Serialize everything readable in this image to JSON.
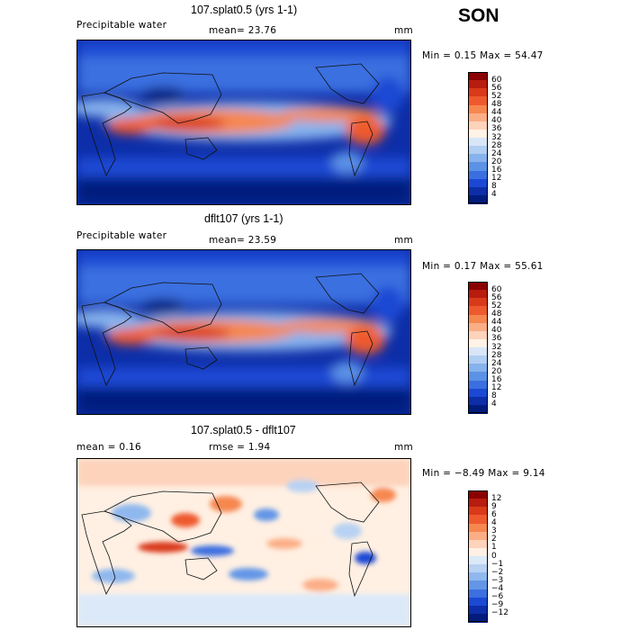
{
  "season": "SON",
  "panels": [
    {
      "title": "107.splat0.5 (yrs 1-1)",
      "left_label": "Precipitable water",
      "mid_label": "mean=  23.76",
      "units": "mm",
      "minmax": "Min =    0.15 Max =  54.47",
      "kind": "field",
      "colorbar": {
        "levels": [
          "60",
          "56",
          "52",
          "48",
          "44",
          "40",
          "36",
          "32",
          "28",
          "24",
          "20",
          "16",
          "12",
          "8",
          "4"
        ],
        "colors": [
          "#8b0000",
          "#b71c0f",
          "#d93a1a",
          "#ee5a2e",
          "#f6874f",
          "#fbae86",
          "#fdd3bb",
          "#fff3e6",
          "#d8e6f8",
          "#b1cef3",
          "#86b2ed",
          "#5c92e6",
          "#3a6fe0",
          "#1c49d4",
          "#0d2ea8",
          "#021c7e"
        ]
      }
    },
    {
      "title": "dflt107 (yrs 1-1)",
      "left_label": "Precipitable water",
      "mid_label": "mean=  23.59",
      "units": "mm",
      "minmax": "Min =    0.17 Max =  55.61",
      "kind": "field",
      "colorbar": {
        "levels": [
          "60",
          "56",
          "52",
          "48",
          "44",
          "40",
          "36",
          "32",
          "28",
          "24",
          "20",
          "16",
          "12",
          "8",
          "4"
        ],
        "colors": [
          "#8b0000",
          "#b71c0f",
          "#d93a1a",
          "#ee5a2e",
          "#f6874f",
          "#fbae86",
          "#fdd3bb",
          "#fff3e6",
          "#d8e6f8",
          "#b1cef3",
          "#86b2ed",
          "#5c92e6",
          "#3a6fe0",
          "#1c49d4",
          "#0d2ea8",
          "#021c7e"
        ]
      }
    },
    {
      "title": "107.splat0.5 - dflt107",
      "left_label": "mean =    0.16",
      "mid_label": "rmse =    1.94",
      "units": "mm",
      "minmax": "Min =  −8.49 Max =    9.14",
      "kind": "diff",
      "colorbar": {
        "levels": [
          "12",
          "9",
          "6",
          "4",
          "3",
          "2",
          "1",
          "0",
          "−1",
          "−2",
          "−3",
          "−4",
          "−6",
          "−9",
          "−12"
        ],
        "colors": [
          "#8b0000",
          "#b71c0f",
          "#d93a1a",
          "#ee5a2e",
          "#f6874f",
          "#fbae86",
          "#fdd3bb",
          "#fff0e3",
          "#dce9f8",
          "#b8d2f3",
          "#8fb8ee",
          "#6496e7",
          "#3c70e0",
          "#1c49d4",
          "#0d2ea8",
          "#021c7e"
        ]
      }
    }
  ]
}
